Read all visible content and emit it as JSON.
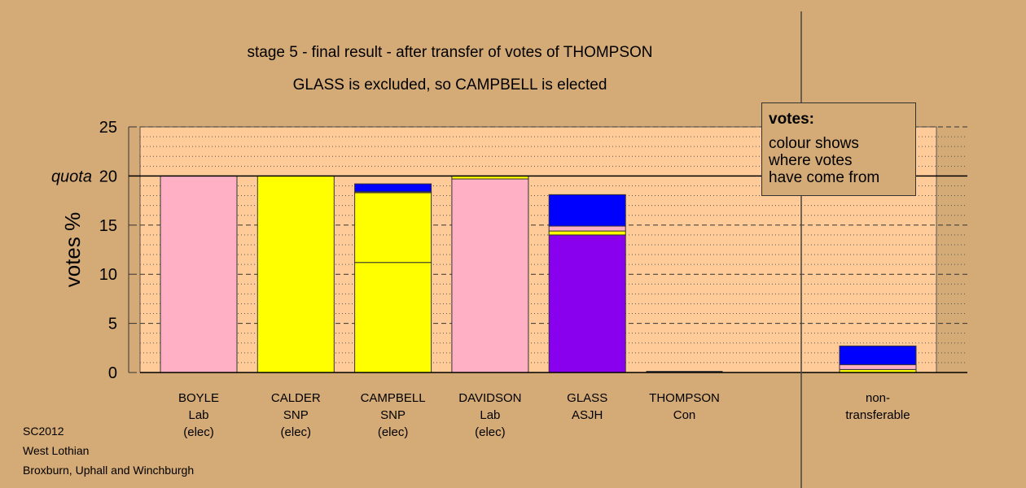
{
  "titles": {
    "line1": "stage 5 - final result - after transfer of votes of THOMPSON",
    "line2": "GLASS is excluded, so CAMPBELL is elected"
  },
  "legend": {
    "heading": "votes:",
    "lines": [
      "colour shows",
      "where votes",
      "have come from"
    ]
  },
  "footer": {
    "line1": "SC2012",
    "line2": "West Lothian",
    "line3": "Broxburn, Uphall and Winchburgh"
  },
  "colors": {
    "background": "#d4aa77",
    "plot": "#ffcc99",
    "Lab": "#ffb0c4",
    "SNP": "#ffff00",
    "ASJH": "#8800ee",
    "Con": "#0000ff"
  },
  "chart_data": {
    "type": "bar",
    "stacked": true,
    "ylabel": "votes %",
    "ylim": [
      0,
      25
    ],
    "yticks": [
      0,
      5,
      10,
      15,
      20,
      25
    ],
    "quota": 20,
    "quota_label": "quota",
    "categories": [
      {
        "name": "BOYLE",
        "party": "Lab",
        "status": "(elec)",
        "segments": [
          {
            "from": "Lab",
            "value": 20.0
          }
        ]
      },
      {
        "name": "CALDER",
        "party": "SNP",
        "status": "(elec)",
        "segments": [
          {
            "from": "SNP",
            "value": 20.0
          }
        ]
      },
      {
        "name": "CAMPBELL",
        "party": "SNP",
        "status": "(elec)",
        "segments": [
          {
            "from": "SNP",
            "value": 11.2
          },
          {
            "from": "SNP",
            "value": 7.1
          },
          {
            "from": "Lab",
            "value": 0.1
          },
          {
            "from": "Con",
            "value": 0.8
          }
        ]
      },
      {
        "name": "DAVIDSON",
        "party": "Lab",
        "status": "(elec)",
        "segments": [
          {
            "from": "Lab",
            "value": 19.7
          },
          {
            "from": "SNP",
            "value": 0.3
          }
        ]
      },
      {
        "name": "GLASS",
        "party": "ASJH",
        "status": "",
        "segments": [
          {
            "from": "ASJH",
            "value": 14.0
          },
          {
            "from": "SNP",
            "value": 0.4
          },
          {
            "from": "Lab",
            "value": 0.5
          },
          {
            "from": "Con",
            "value": 3.2
          }
        ]
      },
      {
        "name": "THOMPSON",
        "party": "Con",
        "status": "",
        "segments": []
      }
    ],
    "nontransferable": {
      "line1": "non-",
      "line2": "transferable",
      "segments": [
        {
          "from": "SNP",
          "value": 0.3
        },
        {
          "from": "Lab",
          "value": 0.5
        },
        {
          "from": "Con",
          "value": 1.9
        }
      ]
    }
  }
}
